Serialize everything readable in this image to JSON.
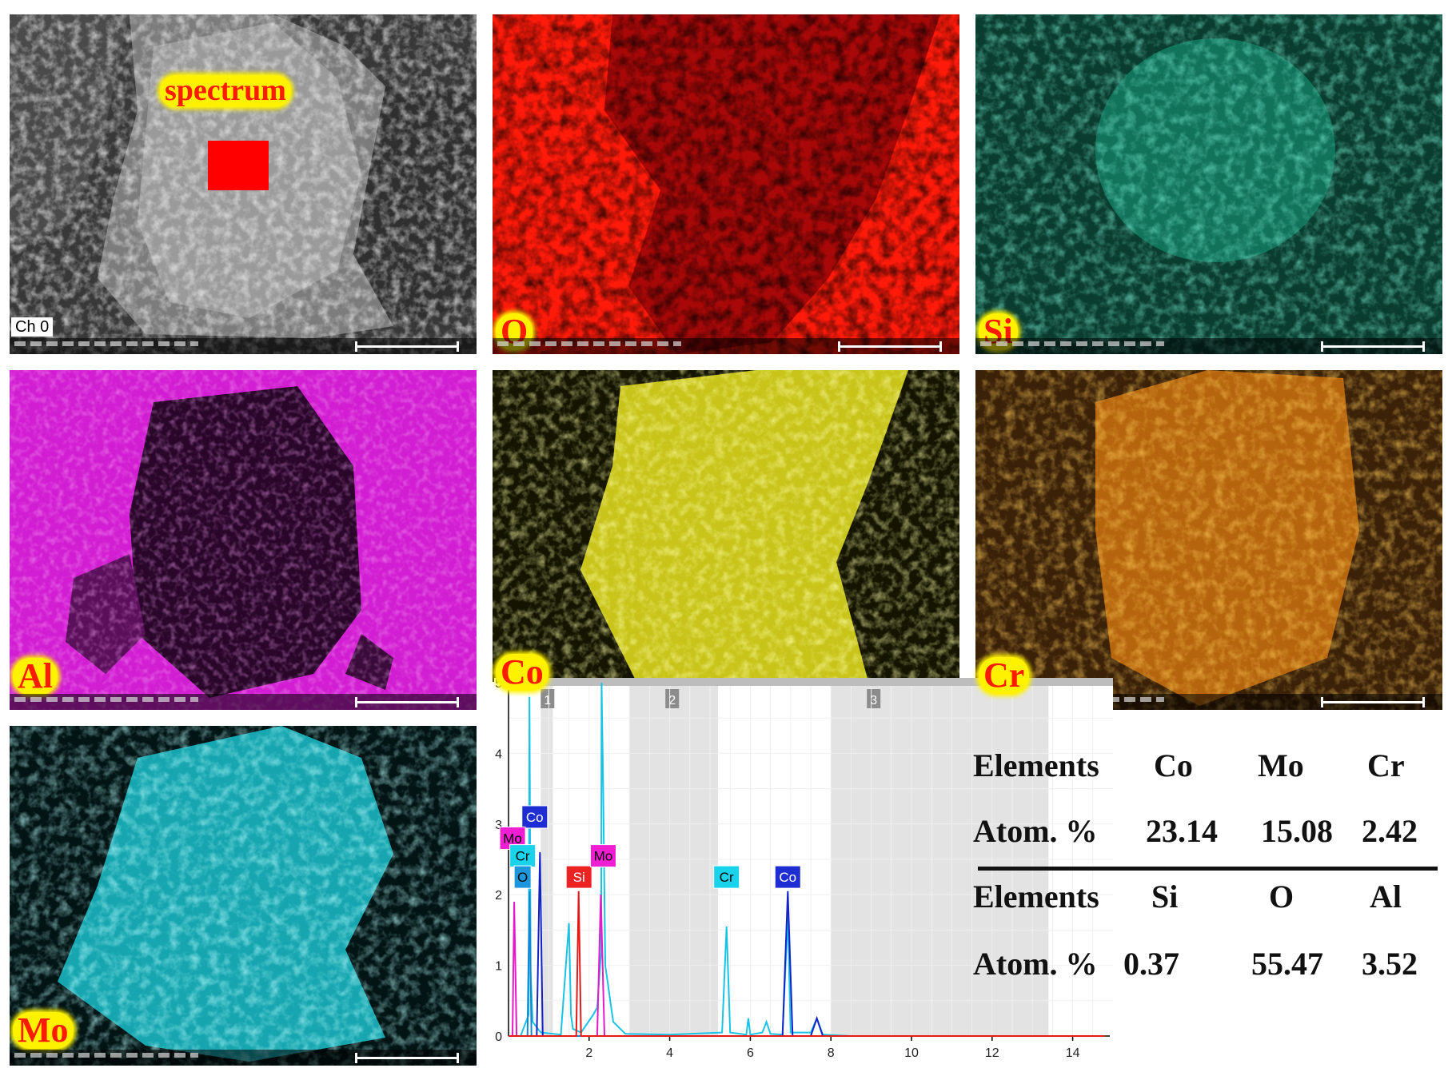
{
  "panels": {
    "sem": {
      "tag": "Ch 0",
      "roi_label": "spectrum",
      "roi_color": "#ff0000"
    },
    "oxygen": {
      "label": "O",
      "color": "#ff1a0a"
    },
    "silicon": {
      "label": "Si",
      "color": "#0f7a5f"
    },
    "aluminum": {
      "label": "Al",
      "color": "#d21ed2"
    },
    "cobalt": {
      "label": "Co",
      "color": "#e6e11e"
    },
    "chromium": {
      "label": "Cr",
      "color": "#d97a10"
    },
    "molybdenum": {
      "label": "Mo",
      "color": "#1ec8d2"
    }
  },
  "chart_data": {
    "type": "line",
    "title": "",
    "xlabel": "",
    "ylabel": "",
    "xlim": [
      0,
      15
    ],
    "ylim": [
      0,
      5
    ],
    "x_ticks": [
      "2",
      "4",
      "6",
      "8",
      "10",
      "12",
      "14"
    ],
    "y_ticks": [
      "0",
      "1",
      "2",
      "3",
      "4",
      "5"
    ],
    "regions": [
      {
        "label": "1",
        "x": [
          0.8,
          1.1
        ]
      },
      {
        "label": "2",
        "x": [
          3.0,
          5.2
        ]
      },
      {
        "label": "3",
        "x": [
          8.0,
          13.4
        ]
      }
    ],
    "series": [
      {
        "name": "Cr",
        "color": "#19c3e6",
        "x": [
          0.0,
          0.3,
          0.5,
          0.52,
          0.55,
          0.6,
          0.8,
          1.3,
          1.5,
          1.55,
          1.6,
          1.8,
          2.1,
          2.2,
          2.3,
          2.31,
          2.35,
          2.4,
          2.6,
          2.9,
          4.0,
          5.3,
          5.41,
          5.5,
          5.9,
          5.95,
          6.0,
          6.3,
          6.4,
          6.5,
          6.8,
          6.93,
          7.0,
          7.5,
          7.65,
          7.8,
          8.5,
          14.8
        ],
        "y": [
          0.0,
          0.0,
          0.3,
          4.8,
          0.9,
          0.2,
          0.05,
          0.02,
          1.6,
          0.3,
          0.1,
          0.05,
          0.3,
          0.4,
          1.2,
          5.0,
          3.5,
          1.0,
          0.2,
          0.03,
          0.02,
          0.05,
          1.55,
          0.05,
          0.02,
          0.25,
          0.02,
          0.05,
          0.2,
          0.03,
          0.02,
          1.7,
          0.05,
          0.05,
          0.25,
          0.02,
          0.0,
          0.0
        ]
      },
      {
        "name": "Co",
        "color": "#1423c8",
        "x": [
          0.0,
          0.7,
          0.78,
          0.85,
          1.0,
          6.8,
          6.93,
          7.05,
          7.5,
          7.65,
          7.8,
          14.8
        ],
        "y": [
          0.0,
          0.0,
          2.6,
          0.0,
          0.0,
          0.0,
          2.05,
          0.0,
          0.0,
          0.25,
          0.0,
          0.0
        ]
      },
      {
        "name": "Mo",
        "color": "#e619c8",
        "x": [
          0.0,
          0.1,
          0.14,
          0.2,
          2.2,
          2.29,
          2.38,
          14.8
        ],
        "y": [
          0.0,
          0.0,
          1.9,
          0.0,
          0.0,
          2.0,
          0.0,
          0.0
        ]
      },
      {
        "name": "O",
        "color": "#1487d2",
        "x": [
          0.0,
          0.47,
          0.52,
          0.57,
          14.8
        ],
        "y": [
          0.0,
          0.0,
          2.05,
          0.0,
          0.0
        ]
      },
      {
        "name": "Si",
        "color": "#e61919",
        "x": [
          0.0,
          1.68,
          1.74,
          1.8,
          14.8
        ],
        "y": [
          0.0,
          0.0,
          2.05,
          0.0,
          0.0
        ]
      }
    ],
    "peak_labels": [
      {
        "text": "Co",
        "x": 0.65,
        "y": 3.1,
        "bg": "#1e2ed2",
        "fg": "#ffffff"
      },
      {
        "text": "Mo",
        "x": 0.1,
        "y": 2.8,
        "bg": "#f01ed2",
        "fg": "#000000"
      },
      {
        "text": "Cr",
        "x": 0.35,
        "y": 2.55,
        "bg": "#19d2eb",
        "fg": "#000000"
      },
      {
        "text": "O",
        "x": 0.35,
        "y": 2.25,
        "bg": "#1e96dc",
        "fg": "#000000"
      },
      {
        "text": "Si",
        "x": 1.75,
        "y": 2.25,
        "bg": "#eb2323",
        "fg": "#ffffff"
      },
      {
        "text": "Mo",
        "x": 2.35,
        "y": 2.55,
        "bg": "#f01ed2",
        "fg": "#000000"
      },
      {
        "text": "Cr",
        "x": 5.41,
        "y": 2.25,
        "bg": "#19d2eb",
        "fg": "#000000"
      },
      {
        "text": "Co",
        "x": 6.93,
        "y": 2.25,
        "bg": "#1e2ed2",
        "fg": "#ffffff"
      }
    ]
  },
  "composition": {
    "row1": {
      "head": "Elements",
      "c1": "Co",
      "c2": "Mo",
      "c3": "Cr"
    },
    "row2": {
      "head": "Atom. %",
      "c1": "23.14",
      "c2": "15.08",
      "c3": "2.42"
    },
    "row3": {
      "head": "Elements",
      "c1": "Si",
      "c2": "O",
      "c3": "Al"
    },
    "row4": {
      "head": "Atom. %",
      "c1": "0.37",
      "c2": "55.47",
      "c3": "3.52"
    }
  }
}
